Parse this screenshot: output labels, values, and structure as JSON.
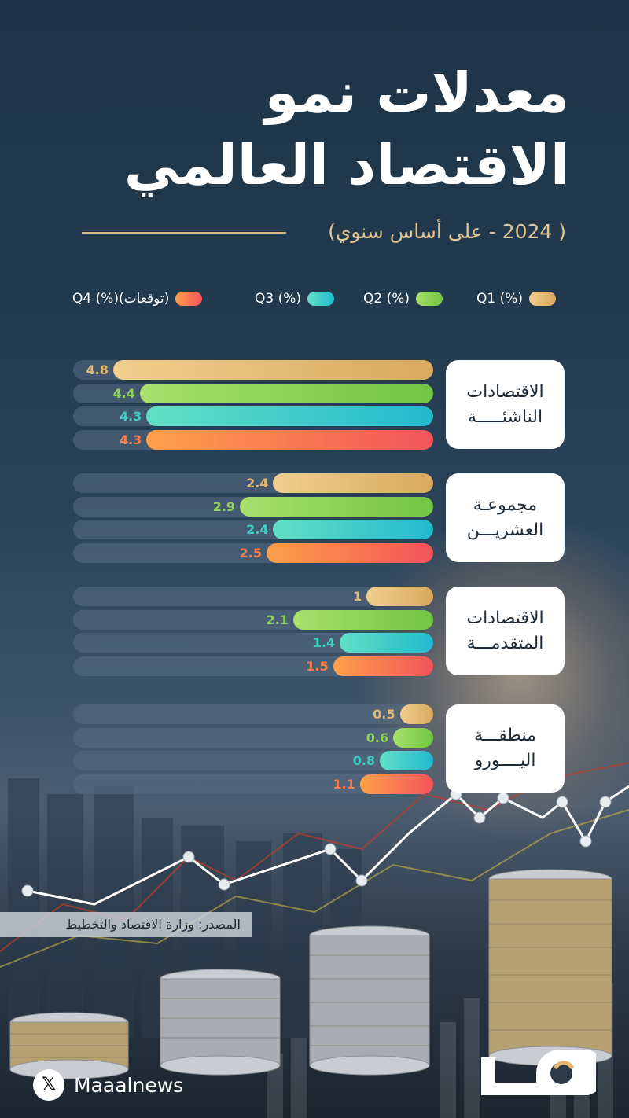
{
  "title_line1": "معدلات نمو",
  "title_line2": "الاقتصاد العالمي",
  "subtitle": "( 2024 - على أساس سنوي)",
  "chart_data": {
    "type": "bar",
    "orientation": "horizontal",
    "categories": [
      "الاقتصادات الناشئة",
      "مجموعة العشرين",
      "الاقتصادات المتقدمة",
      "منطقة اليورو"
    ],
    "series": [
      {
        "name": "Q1 (%)",
        "color": "#e2b872",
        "values": [
          4.8,
          2.4,
          1,
          0.5
        ]
      },
      {
        "name": "Q2 (%)",
        "color": "#8ed257",
        "values": [
          4.4,
          2.9,
          2.1,
          0.6
        ]
      },
      {
        "name": "Q3 (%)",
        "color": "#3ccdc6",
        "values": [
          4.3,
          2.4,
          1.4,
          0.8
        ]
      },
      {
        "name": "Q4 (%)(توقعات)",
        "color": "#f87e4e",
        "values": [
          4.3,
          2.5,
          1.5,
          1.1
        ]
      }
    ],
    "value_labels": [
      [
        "4.8",
        "4.4",
        "4.3",
        "4.3"
      ],
      [
        "2.4",
        "2.9",
        "2.4",
        "2.5"
      ],
      [
        "1",
        "2.1",
        "1.4",
        "1.5"
      ],
      [
        "0.5",
        "0.6",
        "0.8",
        "1.1"
      ]
    ],
    "xlim": [
      0,
      5.4
    ],
    "legend_position": "top"
  },
  "legend": [
    {
      "label": "Q1 (%)",
      "color": "#e2b872"
    },
    {
      "label": "Q2 (%)",
      "color": "#8ed257"
    },
    {
      "label": "Q3 (%)",
      "color": "#3ccdc6"
    },
    {
      "label": "Q4 (%)(توقعات)",
      "color": "#f87e4e"
    }
  ],
  "cards": [
    {
      "line1": "الاقتصادات",
      "line2": "الناشئـــــة"
    },
    {
      "line1": "مجموعـة",
      "line2": "العشريـــن"
    },
    {
      "line1": "الاقتصادات",
      "line2": "المتقدمـــة"
    },
    {
      "line1": "منطقـــة",
      "line2": "اليــــورو"
    }
  ],
  "source": "المصدر: وزارة الاقتصاد والتخطيط",
  "footer": {
    "handle": "Maaalnews",
    "social_icon": "x-logo-icon",
    "brand_icon": "maaal-logo-icon"
  }
}
